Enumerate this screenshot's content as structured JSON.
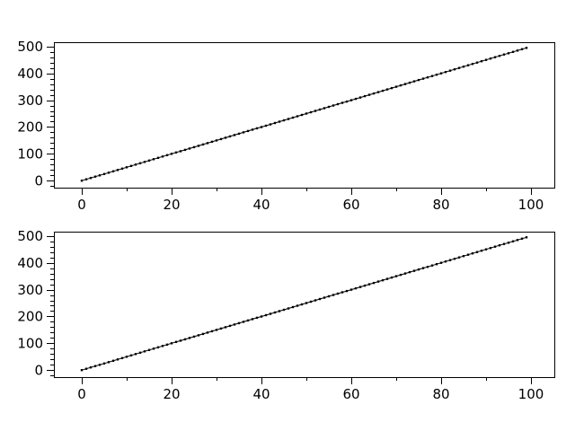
{
  "figure": {
    "background": "#ffffff",
    "frame_color": "#000000",
    "text_color": "#000000",
    "tick_color": "#000000"
  },
  "chart_data": [
    {
      "type": "line",
      "subplot": "top",
      "title": "",
      "xlabel": "",
      "ylabel": "",
      "line_color": "#000000",
      "marker": "square",
      "marker_color": "#000000",
      "grid": false,
      "legend": null,
      "xlim": [
        -6.2,
        105.2
      ],
      "ylim": [
        -26,
        516
      ],
      "xticks": [
        0,
        20,
        40,
        60,
        80,
        100
      ],
      "xtick_labels": [
        "0",
        "20",
        "40",
        "60",
        "80",
        "100"
      ],
      "x_minor_ticks": [
        10,
        30,
        50,
        70,
        90
      ],
      "yticks": [
        0,
        100,
        200,
        300,
        400,
        500
      ],
      "ytick_labels": [
        "0",
        "100",
        "200",
        "300",
        "400",
        "500"
      ],
      "y_minor_ticks": [
        -20,
        20,
        40,
        60,
        80,
        120,
        140,
        160,
        180,
        220,
        240,
        260,
        280,
        320,
        340,
        360,
        380,
        420,
        440,
        460,
        480
      ],
      "x": [
        0,
        1,
        2,
        3,
        4,
        5,
        6,
        7,
        8,
        9,
        10,
        11,
        12,
        13,
        14,
        15,
        16,
        17,
        18,
        19,
        20,
        21,
        22,
        23,
        24,
        25,
        26,
        27,
        28,
        29,
        30,
        31,
        32,
        33,
        34,
        35,
        36,
        37,
        38,
        39,
        40,
        41,
        42,
        43,
        44,
        45,
        46,
        47,
        48,
        49,
        50,
        51,
        52,
        53,
        54,
        55,
        56,
        57,
        58,
        59,
        60,
        61,
        62,
        63,
        64,
        65,
        66,
        67,
        68,
        69,
        70,
        71,
        72,
        73,
        74,
        75,
        76,
        77,
        78,
        79,
        80,
        81,
        82,
        83,
        84,
        85,
        86,
        87,
        88,
        89,
        90,
        91,
        92,
        93,
        94,
        95,
        96,
        97,
        98,
        99
      ],
      "y": [
        0,
        5,
        10,
        15,
        20,
        25,
        30,
        35,
        40,
        45,
        50,
        55,
        60,
        65,
        70,
        75,
        80,
        85,
        90,
        95,
        100,
        105,
        110,
        115,
        120,
        125,
        130,
        135,
        140,
        145,
        150,
        155,
        160,
        165,
        170,
        175,
        180,
        185,
        190,
        195,
        200,
        205,
        210,
        215,
        220,
        225,
        230,
        235,
        240,
        245,
        250,
        255,
        260,
        265,
        270,
        275,
        280,
        285,
        290,
        295,
        300,
        305,
        310,
        315,
        320,
        325,
        330,
        335,
        340,
        345,
        350,
        355,
        360,
        365,
        370,
        375,
        380,
        385,
        390,
        395,
        400,
        405,
        410,
        415,
        420,
        425,
        430,
        435,
        440,
        445,
        450,
        455,
        460,
        465,
        470,
        475,
        480,
        485,
        490,
        495
      ]
    },
    {
      "type": "line",
      "subplot": "bottom",
      "title": "",
      "xlabel": "",
      "ylabel": "",
      "line_color": "#000000",
      "marker": "square",
      "marker_color": "#000000",
      "grid": false,
      "legend": null,
      "xlim": [
        -6.2,
        105.2
      ],
      "ylim": [
        -26,
        516
      ],
      "xticks": [
        0,
        20,
        40,
        60,
        80,
        100
      ],
      "xtick_labels": [
        "0",
        "20",
        "40",
        "60",
        "80",
        "100"
      ],
      "x_minor_ticks": [
        10,
        30,
        50,
        70,
        90
      ],
      "yticks": [
        0,
        100,
        200,
        300,
        400,
        500
      ],
      "ytick_labels": [
        "0",
        "100",
        "200",
        "300",
        "400",
        "500"
      ],
      "y_minor_ticks": [
        -20,
        20,
        40,
        60,
        80,
        120,
        140,
        160,
        180,
        220,
        240,
        260,
        280,
        320,
        340,
        360,
        380,
        420,
        440,
        460,
        480
      ],
      "x": [
        0,
        1,
        2,
        3,
        4,
        5,
        6,
        7,
        8,
        9,
        10,
        11,
        12,
        13,
        14,
        15,
        16,
        17,
        18,
        19,
        20,
        21,
        22,
        23,
        24,
        25,
        26,
        27,
        28,
        29,
        30,
        31,
        32,
        33,
        34,
        35,
        36,
        37,
        38,
        39,
        40,
        41,
        42,
        43,
        44,
        45,
        46,
        47,
        48,
        49,
        50,
        51,
        52,
        53,
        54,
        55,
        56,
        57,
        58,
        59,
        60,
        61,
        62,
        63,
        64,
        65,
        66,
        67,
        68,
        69,
        70,
        71,
        72,
        73,
        74,
        75,
        76,
        77,
        78,
        79,
        80,
        81,
        82,
        83,
        84,
        85,
        86,
        87,
        88,
        89,
        90,
        91,
        92,
        93,
        94,
        95,
        96,
        97,
        98,
        99
      ],
      "y": [
        0,
        5,
        10,
        15,
        20,
        25,
        30,
        35,
        40,
        45,
        50,
        55,
        60,
        65,
        70,
        75,
        80,
        85,
        90,
        95,
        100,
        105,
        110,
        115,
        120,
        125,
        130,
        135,
        140,
        145,
        150,
        155,
        160,
        165,
        170,
        175,
        180,
        185,
        190,
        195,
        200,
        205,
        210,
        215,
        220,
        225,
        230,
        235,
        240,
        245,
        250,
        255,
        260,
        265,
        270,
        275,
        280,
        285,
        290,
        295,
        300,
        305,
        310,
        315,
        320,
        325,
        330,
        335,
        340,
        345,
        350,
        355,
        360,
        365,
        370,
        375,
        380,
        385,
        390,
        395,
        400,
        405,
        410,
        415,
        420,
        425,
        430,
        435,
        440,
        445,
        450,
        455,
        460,
        465,
        470,
        475,
        480,
        485,
        490,
        495
      ]
    }
  ]
}
